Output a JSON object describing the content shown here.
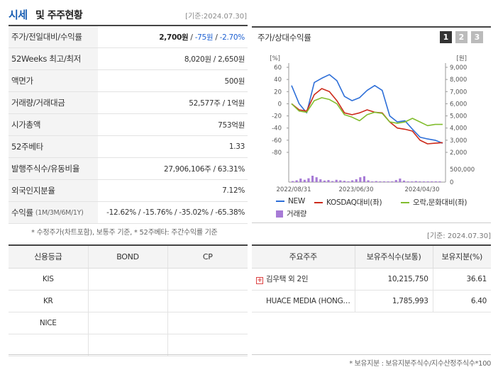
{
  "header": {
    "title_blue": "시세",
    "title_rest": "및 주주현황",
    "date": "[기준:2024.07.30]"
  },
  "price_table": {
    "rows": [
      {
        "label": "주가/전일대비/수익률",
        "price": "2,700원",
        "change": "-75원",
        "rate": "-2.70%"
      },
      {
        "label": "52Weeks 최고/최저",
        "value": "8,020원 / 2,650원"
      },
      {
        "label": "액면가",
        "value": "500원"
      },
      {
        "label": "거래량/거래대금",
        "value": "52,577주 / 1억원"
      },
      {
        "label": "시가총액",
        "value": "753억원"
      },
      {
        "label": "52주베타",
        "value": "1.33"
      },
      {
        "label": "발행주식수/유동비율",
        "value": "27,906,106주 / 63.31%"
      },
      {
        "label": "외국인지분율",
        "value": "7.12%"
      },
      {
        "label": "수익률",
        "label_sub": "(1M/3M/6M/1Y)",
        "value": "-12.62% / -15.76% / -35.02% / -65.38%"
      }
    ],
    "note": "* 수정주가(차트포함), 보통주 기준, * 52주베타: 주간수익률 기준"
  },
  "chart_panel": {
    "title": "주가/상대수익률",
    "tabs": [
      "1",
      "2",
      "3"
    ],
    "active_tab": "1",
    "date": "[기준: 2024.07.30]"
  },
  "chart_data": {
    "type": "line",
    "left_unit": "[%]",
    "right_unit": "[원]",
    "left_ticks": [
      "60",
      "40",
      "20",
      "0",
      "-20",
      "-40",
      "-60",
      "-80"
    ],
    "right_ticks": [
      "9,000",
      "8,000",
      "7,000",
      "6,000",
      "5,000",
      "4,000",
      "3,000",
      "2,000"
    ],
    "volume_ticks": [
      "500,000",
      "0"
    ],
    "x_ticks": [
      "2022/08/31",
      "2023/06/30",
      "2024/04/30"
    ],
    "ylim_left": [
      -80,
      60
    ],
    "ylim_right": [
      2000,
      9000
    ],
    "ylim_volume": [
      0,
      500000
    ],
    "series": [
      {
        "name": "NEW",
        "color": "#2e6fd8",
        "axis": "left",
        "values": [
          30,
          0,
          -15,
          35,
          42,
          48,
          38,
          12,
          5,
          10,
          22,
          30,
          22,
          -20,
          -30,
          -28,
          -42,
          -55,
          -58,
          -60,
          -65
        ]
      },
      {
        "name": "KOSDAQ대비(좌)",
        "color": "#cc2a1a",
        "axis": "left",
        "values": [
          0,
          -10,
          -12,
          15,
          25,
          20,
          5,
          -15,
          -18,
          -15,
          -10,
          -14,
          -15,
          -30,
          -40,
          -42,
          -45,
          -60,
          -66,
          -65,
          -64
        ]
      },
      {
        "name": "오락,문화대비(좌)",
        "color": "#82bd2e",
        "axis": "left",
        "values": [
          0,
          -12,
          -14,
          5,
          10,
          7,
          0,
          -18,
          -22,
          -28,
          -18,
          -14,
          -16,
          -30,
          -32,
          -30,
          -24,
          -30,
          -36,
          -34,
          -34
        ]
      }
    ],
    "volume": {
      "name": "거래량",
      "color": "#a77bd6",
      "values": [
        40000,
        70000,
        140000,
        90000,
        150000,
        250000,
        190000,
        110000,
        60000,
        80000,
        40000,
        90000,
        70000,
        50000,
        30000,
        70000,
        110000,
        190000,
        230000,
        70000,
        20000,
        40000,
        30000,
        30000,
        20000,
        30000,
        80000,
        140000,
        60000,
        20000,
        20000,
        40000,
        30000,
        20000,
        20000,
        30000,
        30000,
        30000
      ]
    }
  },
  "credit_table": {
    "headers": [
      "신용등급",
      "BOND",
      "CP"
    ],
    "rows": [
      [
        "KIS",
        "",
        ""
      ],
      [
        "KR",
        "",
        ""
      ],
      [
        "NICE",
        "",
        ""
      ],
      [
        "",
        "",
        ""
      ]
    ]
  },
  "holder_table": {
    "headers": [
      "주요주주",
      "보유주식수(보통)",
      "보유지분(%)"
    ],
    "rows": [
      {
        "name": "김우택 외 2인",
        "shares": "10,215,750",
        "pct": "36.61",
        "expand": "+"
      },
      {
        "name": "HUACE MEDIA (HONG…",
        "shares": "1,785,993",
        "pct": "6.40",
        "expand": ""
      }
    ],
    "note": "* 보유지분 : 보유지분주식수/지수산정주식수*100"
  }
}
